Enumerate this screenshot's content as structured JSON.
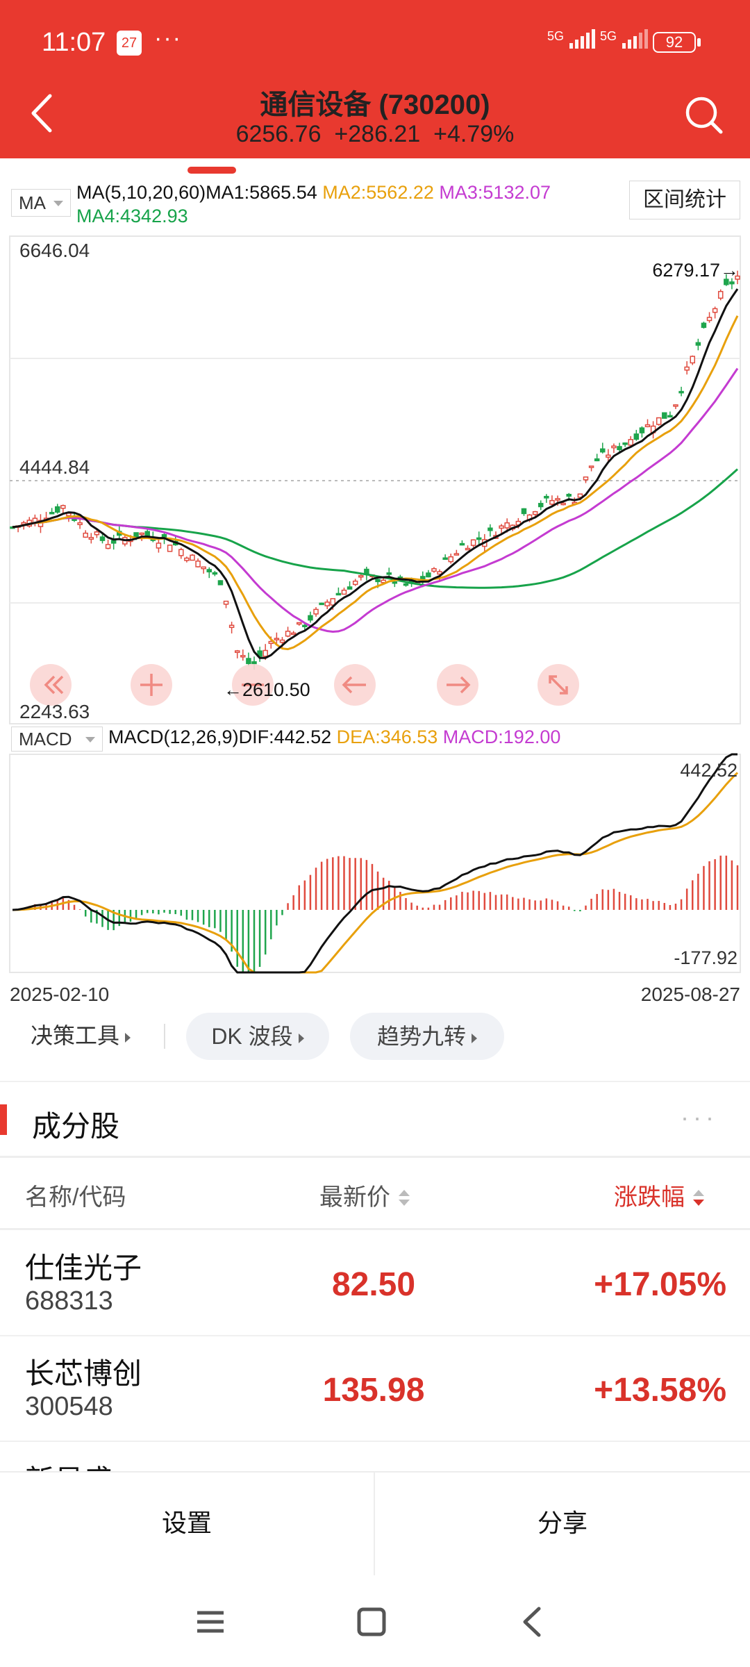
{
  "status_bar": {
    "time": "11:07",
    "calendar_badge": "27",
    "more_dots": "···",
    "signal_1": "5G",
    "signal_2": "5G",
    "battery": "92"
  },
  "header": {
    "title": "通信设备 (730200)",
    "price": "6256.76",
    "change": "+286.21",
    "change_pct": "+4.79%"
  },
  "ma_header": {
    "indicator": "MA",
    "params": "MA(5,10,20,60)",
    "ma1": "MA1:5865.54",
    "ma2": "MA2:5562.22",
    "ma3": "MA3:5132.07",
    "ma4": "MA4:4342.93",
    "range_stats": "区间统计"
  },
  "main_chart": {
    "y_max": "6646.04",
    "y_mid": "4444.84",
    "y_min": "2243.63",
    "high_marker": "6279.17→",
    "low_marker": "←2610.50"
  },
  "macd_header": {
    "indicator": "MACD",
    "params": "MACD(12,26,9)",
    "dif": "DIF:442.52",
    "dea": "DEA:346.53",
    "macd": "MACD:192.00"
  },
  "macd_chart": {
    "y_max": "442.52",
    "y_min": "-177.92"
  },
  "dates": {
    "start": "2025-02-10",
    "end": "2025-08-27"
  },
  "tools": {
    "decision": "决策工具",
    "dk": "DK 波段",
    "trend": "趋势九转"
  },
  "constituents": {
    "title": "成分股",
    "more": "···",
    "col_name": "名称/代码",
    "col_price": "最新价",
    "col_change": "涨跌幅",
    "rows": [
      {
        "name": "仕佳光子",
        "code": "688313",
        "price": "82.50",
        "change": "+17.05%"
      },
      {
        "name": "长芯博创",
        "code": "300548",
        "price": "135.98",
        "change": "+13.58%"
      },
      {
        "name": "新易盛"
      }
    ]
  },
  "bottom": {
    "settings": "设置",
    "share": "分享"
  },
  "colors": {
    "brand_red": "#e8392f",
    "up_red": "#d9322a",
    "down_green": "#17a34a",
    "ma2_orange": "#e8a00c",
    "ma3_purple": "#c43bd1"
  }
}
